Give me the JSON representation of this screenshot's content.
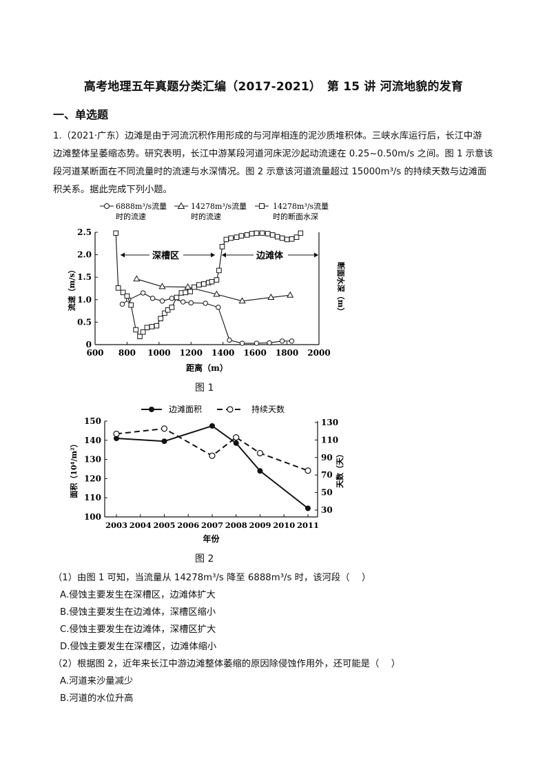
{
  "header": {
    "title": "高考地理五年真题分类汇编（2017-2021）　第 15 讲 河流地貌的发育"
  },
  "section": {
    "title": "一、单选题"
  },
  "question1": {
    "lines": [
      "1.（2021·广东）边滩是由于河流沉积作用形成的与河岸相连的泥沙质堆积体。三峡水库运行后，长江中游",
      "边滩整体呈萎缩态势。研究表明，长江中游某段河道河床泥沙起动流速在 0.25~0.50m/s 之间。图 1 示意该",
      "段河道某断面在不同流量时的流速与水深情况。图 2 示意该河道流量超过 15000m³/s 的持续天数与边滩面",
      "积关系。据此完成下列小题。"
    ]
  },
  "figure1": {
    "caption": "图 1",
    "legend": [
      {
        "line1": "6888m³/s流量",
        "line2": "时的流速"
      },
      {
        "line1": "14278m³/s流量",
        "line2": "时的流速"
      },
      {
        "line1": "14278m³/s流量",
        "line2": "时的断面水深"
      }
    ],
    "region_labels": [
      "深槽区",
      "边滩体"
    ]
  },
  "figure2": {
    "caption": "图 2",
    "legend": [
      "边滩面积",
      "持续天数"
    ]
  },
  "chart_data": [
    {
      "type": "line",
      "xlabel": "距离（m）",
      "ylabel": "流速（m/s）",
      "y2label": "断面水深（m）",
      "xlim": [
        600,
        2000
      ],
      "ylim": [
        0,
        2.5
      ],
      "xticks": [
        "600",
        "800",
        "1000",
        "1200",
        "1400",
        "1600",
        "1800",
        "2000"
      ],
      "yticks": [
        "0",
        "0.5",
        "1.0",
        "1.5",
        "2.0",
        "2.5"
      ],
      "grid": false,
      "series": [
        {
          "name": "6888m³/s流量时的流速",
          "marker": "circle",
          "x": [
            770,
            810,
            900,
            960,
            1020,
            1080,
            1150,
            1200,
            1290,
            1370,
            1440,
            1520,
            1610,
            1690,
            1770,
            1830
          ],
          "y": [
            0.9,
            1.0,
            1.15,
            1.03,
            0.97,
            1.03,
            0.95,
            0.93,
            0.92,
            0.83,
            0.1,
            0.03,
            0.03,
            0.04,
            0.08,
            0.08
          ]
        },
        {
          "name": "14278m³/s流量时的流速",
          "marker": "triangle",
          "x": [
            860,
            1020,
            1180,
            1360,
            1520,
            1700,
            1820
          ],
          "y": [
            1.46,
            1.29,
            1.28,
            1.12,
            0.97,
            1.05,
            1.1
          ]
        },
        {
          "name": "14278m³/s流量时的断面水深",
          "marker": "square",
          "x": [
            730,
            745,
            775,
            800,
            825,
            855,
            880,
            900,
            925,
            955,
            985,
            1010,
            1035,
            1055,
            1080,
            1110,
            1140,
            1165,
            1195,
            1220,
            1250,
            1280,
            1310,
            1330,
            1360,
            1375,
            1395,
            1420,
            1450,
            1485,
            1515,
            1550,
            1580,
            1610,
            1645,
            1680,
            1710,
            1740,
            1770,
            1800,
            1830,
            1860,
            1885
          ],
          "y": [
            2.48,
            1.26,
            1.16,
            1.08,
            0.88,
            0.33,
            0.18,
            0.28,
            0.38,
            0.4,
            0.42,
            0.58,
            0.7,
            0.77,
            0.83,
            1.05,
            1.15,
            1.16,
            1.18,
            1.28,
            1.33,
            1.35,
            1.38,
            1.4,
            1.44,
            1.65,
            2.18,
            2.34,
            2.37,
            2.39,
            2.42,
            2.44,
            2.47,
            2.48,
            2.48,
            2.47,
            2.44,
            2.4,
            2.37,
            2.34,
            2.35,
            2.39,
            2.48
          ]
        }
      ]
    },
    {
      "type": "line",
      "xlabel": "年份",
      "ylabel": "面积（10⁴/m²）",
      "y2label": "天数（天）",
      "categories": [
        "2003",
        "2004",
        "2005",
        "2006",
        "2007",
        "2008",
        "2009",
        "2010",
        "2011"
      ],
      "ylim": [
        100,
        150
      ],
      "y2lim": [
        30,
        130
      ],
      "yticks": [
        "100",
        "110",
        "120",
        "130",
        "140",
        "150"
      ],
      "y2ticks": [
        "30",
        "50",
        "70",
        "90",
        "110",
        "130"
      ],
      "grid": false,
      "series": [
        {
          "name": "边滩面积",
          "style": "solid",
          "marker": "filled-circle",
          "axis": "left",
          "x": [
            2003,
            2005,
            2007,
            2008,
            2009,
            2011
          ],
          "y": [
            141,
            139.5,
            147.5,
            138.5,
            124,
            104.5
          ]
        },
        {
          "name": "持续天数",
          "style": "dashed",
          "marker": "open-circle",
          "axis": "right",
          "x": [
            2003,
            2005,
            2007,
            2008,
            2009,
            2011
          ],
          "y": [
            117,
            123,
            92,
            113,
            95,
            75
          ]
        }
      ]
    }
  ],
  "sub1": {
    "stem": "（1）由图 1 可知，当流量从 14278m³/s 降至 6888m³/s 时，该河段（　 ）",
    "options": [
      "A.侵蚀主要发生在深槽区，边滩体扩大",
      "B.侵蚀主要发生在边滩体，深槽区缩小",
      "C.侵蚀主要发生在边滩体，深槽区扩大",
      "D.侵蚀主要发生在深槽区，边滩体缩小"
    ]
  },
  "sub2": {
    "stem": "（2）根据图 2，近年来长江中游边滩整体萎缩的原因除侵蚀作用外，还可能是（　 ）",
    "options": [
      "A.河道来沙量减少",
      "B.河道的水位升高"
    ]
  }
}
